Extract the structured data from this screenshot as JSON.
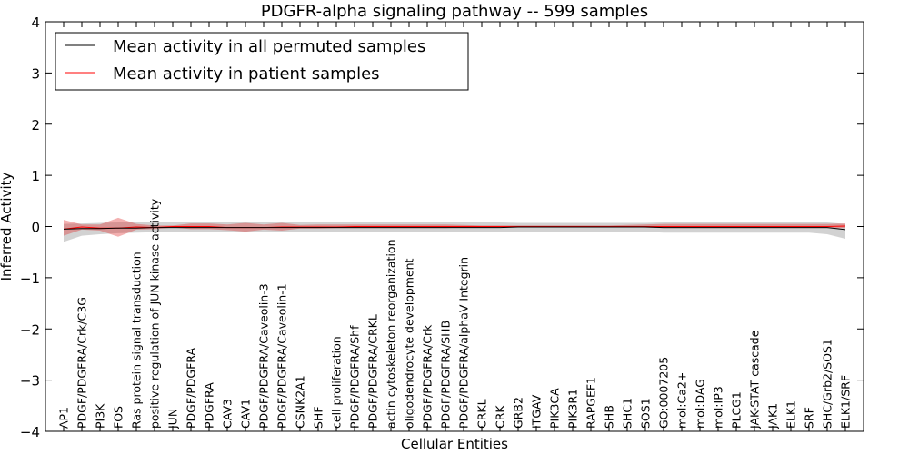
{
  "chart_data": {
    "type": "line",
    "title": "PDGFR-alpha signaling pathway -- 599 samples",
    "xlabel": "Cellular Entities",
    "ylabel": "Inferred Activity",
    "ylim": [
      -4,
      4
    ],
    "yticks": [
      -4,
      -3,
      -2,
      -1,
      0,
      1,
      2,
      3,
      4
    ],
    "ytick_labels": [
      "−4",
      "−3",
      "−2",
      "−1",
      "0",
      "1",
      "2",
      "3",
      "4"
    ],
    "grid": false,
    "legend_position": "top-left",
    "legend": [
      {
        "label": "Mean activity in all permuted samples",
        "color": "#000000"
      },
      {
        "label": "Mean activity in patient samples",
        "color": "#ff0000"
      }
    ],
    "categories": [
      "AP1",
      "PDGF/PDGFRA/Crk/C3G",
      "PI3K",
      "FOS",
      "Ras protein signal transduction",
      "positive regulation of JUN kinase activity",
      "JUN",
      "PDGF/PDGFRA",
      "PDGFRA",
      "CAV3",
      "CAV1",
      "PDGF/PDGFRA/Caveolin-3",
      "PDGF/PDGFRA/Caveolin-1",
      "CSNK2A1",
      "SHF",
      "cell proliferation",
      "PDGF/PDGFRA/Shf",
      "PDGF/PDGFRA/CRKL",
      "actin cytoskeleton reorganization",
      "oligodendrocyte development",
      "PDGF/PDGFRA/Crk",
      "PDGF/PDGFRA/SHB",
      "PDGF/PDGFRA/alphaV Integrin",
      "CRKL",
      "CRK",
      "GRB2",
      "ITGAV",
      "PIK3CA",
      "PIK3R1",
      "RAPGEF1",
      "SHB",
      "SHC1",
      "SOS1",
      "GO:0007205",
      "mol:Ca2+",
      "mol:DAG",
      "mol:IP3",
      "PLCG1",
      "JAK-STAT cascade",
      "JAK1",
      "ELK1",
      "SRF",
      "SHC/Grb2/SOS1",
      "ELK1/SRF"
    ],
    "series": [
      {
        "name": "Mean activity in all permuted samples",
        "color": "#000000",
        "values": [
          -0.05,
          -0.04,
          -0.04,
          -0.03,
          -0.03,
          -0.02,
          -0.02,
          -0.02,
          -0.02,
          -0.02,
          -0.02,
          -0.02,
          -0.02,
          -0.02,
          -0.02,
          -0.02,
          -0.02,
          -0.02,
          -0.02,
          -0.02,
          -0.02,
          -0.02,
          -0.02,
          -0.02,
          -0.02,
          -0.01,
          -0.01,
          -0.01,
          -0.01,
          -0.01,
          -0.01,
          -0.01,
          -0.01,
          -0.02,
          -0.02,
          -0.02,
          -0.02,
          -0.02,
          -0.02,
          -0.02,
          -0.02,
          -0.02,
          -0.02,
          -0.06
        ],
        "band_lower": [
          -0.3,
          -0.18,
          -0.15,
          -0.13,
          -0.12,
          -0.11,
          -0.11,
          -0.11,
          -0.11,
          -0.11,
          -0.11,
          -0.11,
          -0.11,
          -0.11,
          -0.11,
          -0.11,
          -0.11,
          -0.11,
          -0.11,
          -0.11,
          -0.11,
          -0.11,
          -0.11,
          -0.11,
          -0.11,
          -0.11,
          -0.1,
          -0.1,
          -0.1,
          -0.1,
          -0.1,
          -0.1,
          -0.1,
          -0.12,
          -0.12,
          -0.12,
          -0.12,
          -0.12,
          -0.12,
          -0.12,
          -0.12,
          -0.12,
          -0.15,
          -0.24
        ],
        "band_upper": [
          0.05,
          0.06,
          0.07,
          0.08,
          0.08,
          0.08,
          0.08,
          0.08,
          0.08,
          0.08,
          0.08,
          0.08,
          0.08,
          0.08,
          0.08,
          0.08,
          0.08,
          0.08,
          0.08,
          0.08,
          0.08,
          0.08,
          0.08,
          0.08,
          0.08,
          0.07,
          0.07,
          0.07,
          0.07,
          0.07,
          0.07,
          0.07,
          0.07,
          0.08,
          0.08,
          0.08,
          0.08,
          0.08,
          0.08,
          0.08,
          0.08,
          0.08,
          0.08,
          0.05
        ]
      },
      {
        "name": "Mean activity in patient samples",
        "color": "#ff0000",
        "values": [
          -0.05,
          -0.01,
          -0.03,
          -0.03,
          -0.01,
          -0.02,
          0.0,
          0.0,
          0.0,
          -0.02,
          -0.02,
          -0.02,
          -0.01,
          -0.01,
          -0.01,
          -0.01,
          0.0,
          0.0,
          0.0,
          0.0,
          0.0,
          0.0,
          0.0,
          0.0,
          0.0,
          0.0,
          0.0,
          0.0,
          0.0,
          0.0,
          0.0,
          0.0,
          0.0,
          0.0,
          0.0,
          0.0,
          0.0,
          0.0,
          0.0,
          0.0,
          0.0,
          0.0,
          0.0,
          0.01
        ],
        "band_lower": [
          -0.18,
          -0.06,
          -0.08,
          -0.2,
          -0.06,
          -0.05,
          -0.02,
          -0.05,
          -0.05,
          -0.07,
          -0.1,
          -0.06,
          -0.08,
          -0.04,
          -0.04,
          -0.03,
          -0.03,
          -0.03,
          -0.03,
          -0.03,
          -0.03,
          -0.03,
          -0.02,
          -0.02,
          -0.01,
          -0.01,
          -0.01,
          -0.01,
          -0.01,
          -0.01,
          -0.01,
          -0.01,
          -0.02,
          -0.03,
          -0.03,
          -0.03,
          -0.03,
          -0.03,
          -0.03,
          -0.03,
          -0.03,
          -0.03,
          -0.03,
          -0.03
        ],
        "band_upper": [
          0.13,
          0.04,
          0.04,
          0.17,
          0.05,
          0.02,
          0.02,
          0.06,
          0.06,
          0.04,
          0.07,
          0.04,
          0.07,
          0.03,
          0.04,
          0.04,
          0.04,
          0.04,
          0.04,
          0.04,
          0.04,
          0.04,
          0.03,
          0.02,
          0.02,
          0.02,
          0.02,
          0.02,
          0.02,
          0.02,
          0.02,
          0.03,
          0.04,
          0.05,
          0.05,
          0.05,
          0.05,
          0.05,
          0.05,
          0.05,
          0.05,
          0.05,
          0.05,
          0.06
        ]
      }
    ]
  }
}
